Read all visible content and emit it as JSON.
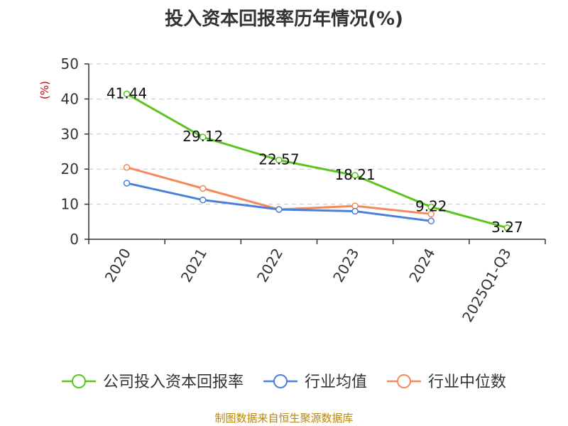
{
  "chart_data": {
    "type": "line",
    "title": "投入资本回报率历年情况(%)",
    "ylabel": "(%)",
    "xlabel": "",
    "categories": [
      "2020",
      "2021",
      "2022",
      "2023",
      "2024",
      "2025Q1-Q3"
    ],
    "ylim": [
      0,
      50
    ],
    "yticks": [
      0,
      10,
      20,
      30,
      40,
      50
    ],
    "grid": true,
    "legend_position": "bottom",
    "series": [
      {
        "name": "公司投入资本回报率",
        "color": "#5cc41f",
        "values": [
          41.44,
          29.12,
          22.57,
          18.21,
          9.22,
          3.27
        ],
        "labels": [
          "41.44",
          "29.12",
          "22.57",
          "18.21",
          "9.22",
          "3.27"
        ]
      },
      {
        "name": "行业均值",
        "color": "#4a7fdb",
        "values": [
          16.0,
          11.2,
          8.5,
          8.0,
          5.2,
          null
        ]
      },
      {
        "name": "行业中位数",
        "color": "#f5895a",
        "values": [
          20.5,
          14.5,
          8.5,
          9.5,
          7.2,
          null
        ]
      }
    ]
  },
  "source": "制图数据来自恒生聚源数据库"
}
